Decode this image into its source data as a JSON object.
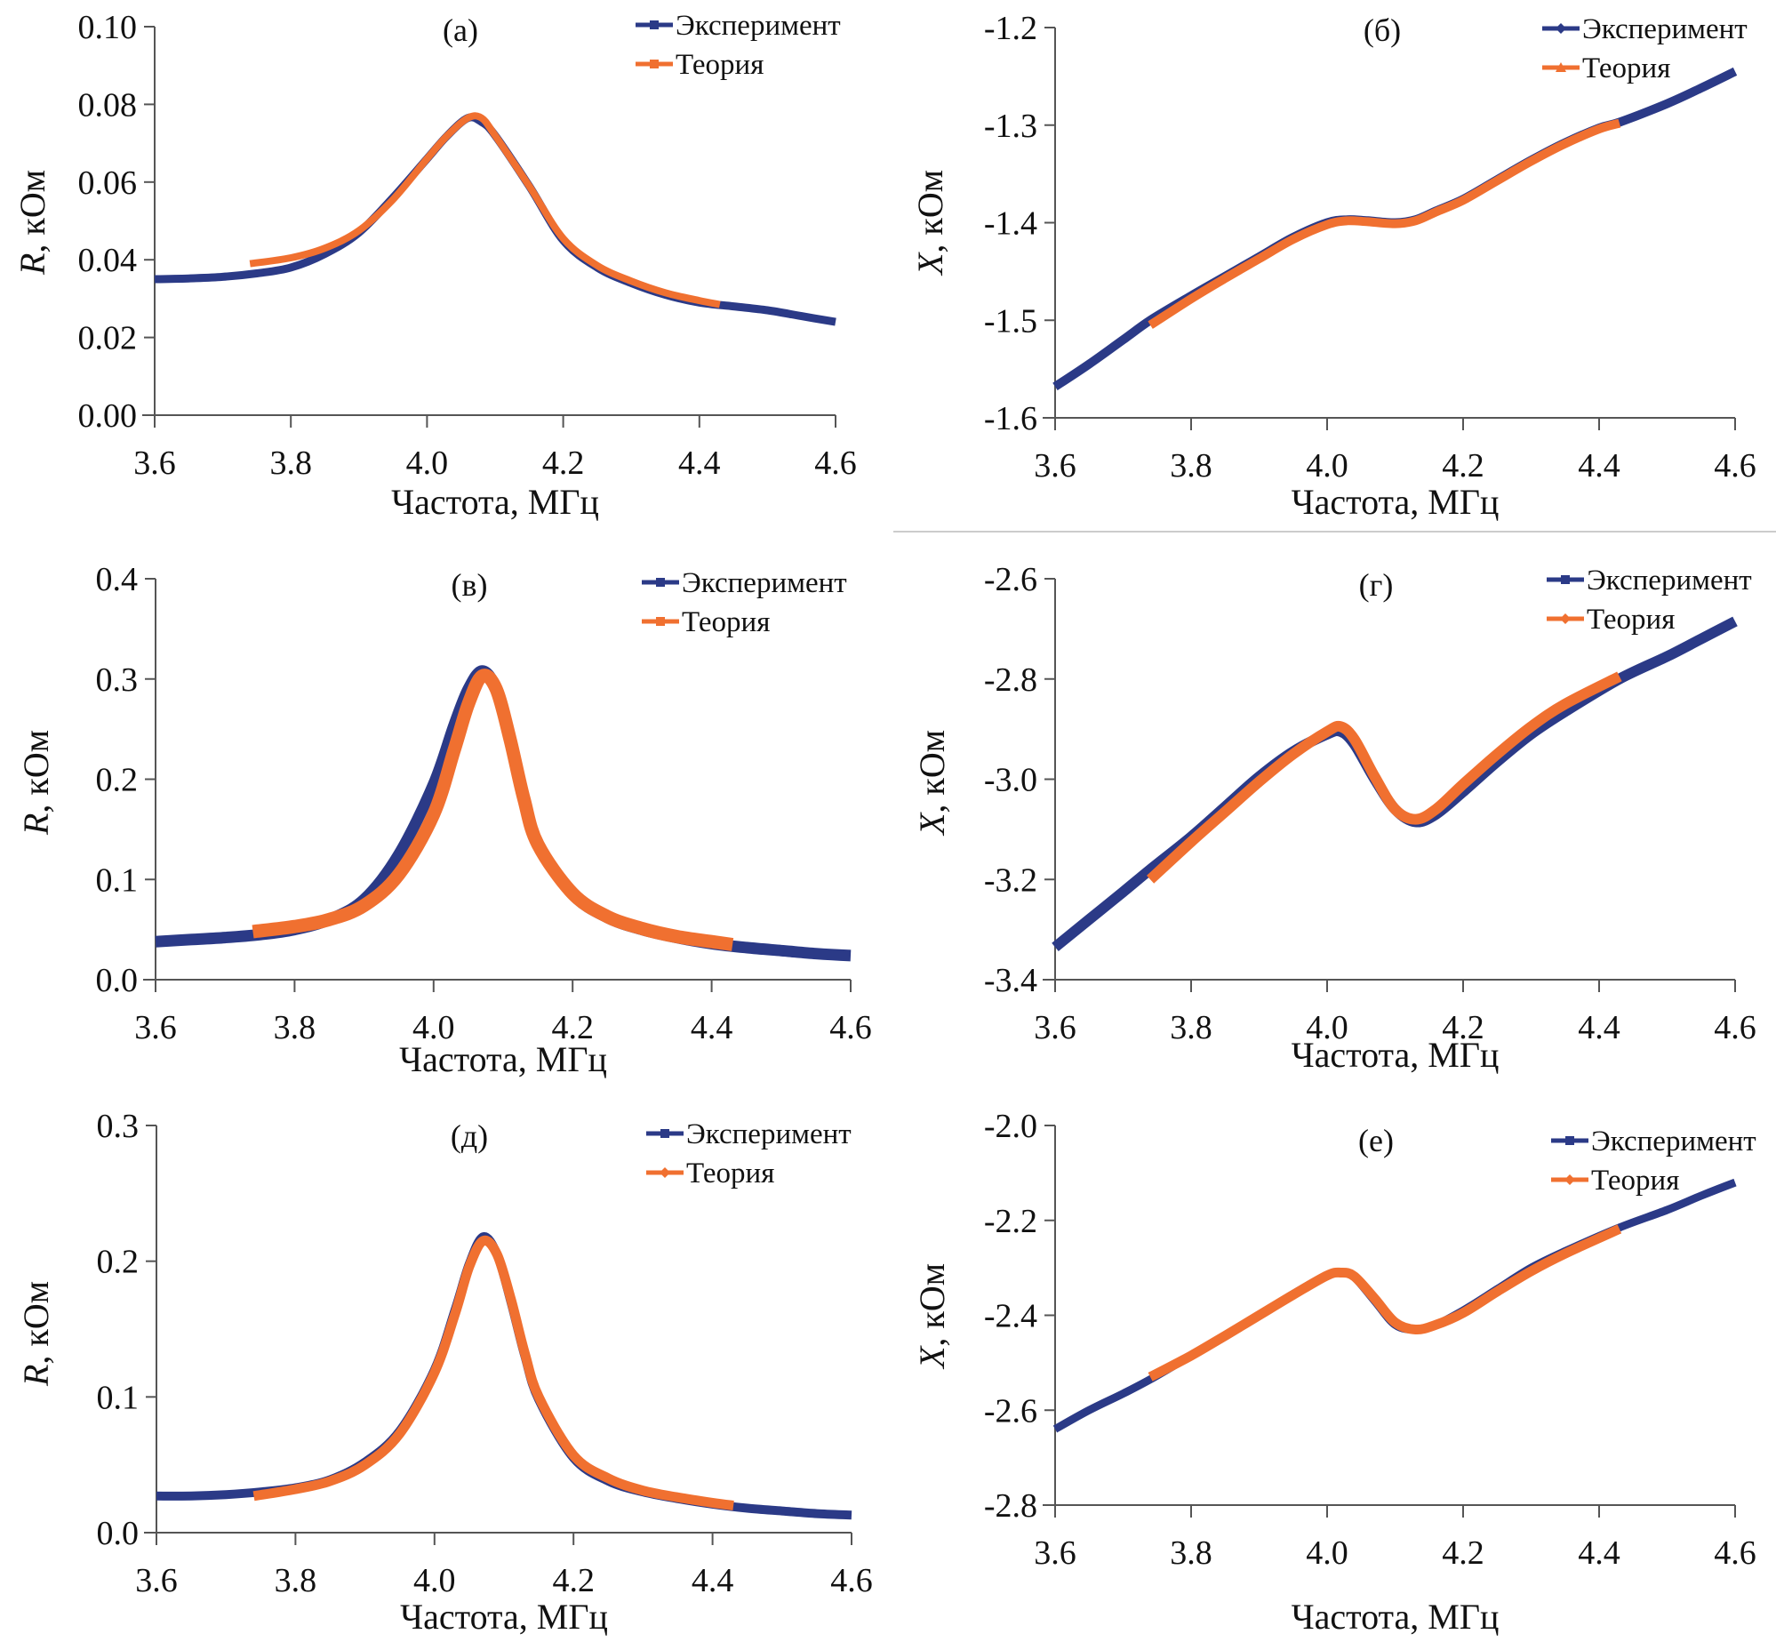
{
  "chart_data": [
    {
      "id": "a",
      "type": "line",
      "panel_label": "(а)",
      "title": "",
      "xlabel": "Частота, МГц",
      "ylabel_italic": "R",
      "ylabel_rest": ", кОм",
      "xlim": [
        3.6,
        4.6
      ],
      "ylim": [
        0.0,
        0.1
      ],
      "xticks": [
        3.6,
        3.8,
        4.0,
        4.2,
        4.4,
        4.6
      ],
      "xtick_labels": [
        "3.6",
        "3.8",
        "4.0",
        "4.2",
        "4.4",
        "4.6"
      ],
      "yticks": [
        0.0,
        0.02,
        0.04,
        0.06,
        0.08,
        0.1
      ],
      "ytick_labels": [
        "0.00",
        "0.02",
        "0.04",
        "0.06",
        "0.08",
        "0.10"
      ],
      "grid": false,
      "legend_position": "top-right",
      "series": [
        {
          "name": "Эксперимент",
          "color": "#2b3a87",
          "marker": "square",
          "x": [
            3.6,
            3.65,
            3.7,
            3.75,
            3.8,
            3.85,
            3.9,
            3.95,
            4.0,
            4.03,
            4.06,
            4.08,
            4.1,
            4.15,
            4.2,
            4.25,
            4.3,
            4.35,
            4.4,
            4.45,
            4.5,
            4.55,
            4.6
          ],
          "y": [
            0.035,
            0.0352,
            0.0356,
            0.0365,
            0.038,
            0.0415,
            0.047,
            0.056,
            0.066,
            0.072,
            0.0765,
            0.0755,
            0.072,
            0.059,
            0.045,
            0.038,
            0.034,
            0.031,
            0.029,
            0.028,
            0.027,
            0.0255,
            0.024
          ]
        },
        {
          "name": "Теория",
          "color": "#f07030",
          "marker": "square",
          "x": [
            3.74,
            3.8,
            3.85,
            3.9,
            3.95,
            4.0,
            4.03,
            4.06,
            4.08,
            4.1,
            4.15,
            4.2,
            4.25,
            4.3,
            4.35,
            4.4,
            4.43
          ],
          "y": [
            0.039,
            0.0405,
            0.043,
            0.0475,
            0.0555,
            0.066,
            0.072,
            0.0765,
            0.0765,
            0.072,
            0.059,
            0.0455,
            0.0385,
            0.0345,
            0.0315,
            0.0295,
            0.0285
          ]
        }
      ]
    },
    {
      "id": "b",
      "type": "line",
      "panel_label": "(б)",
      "title": "",
      "xlabel": "Частота, МГц",
      "ylabel_italic": "X",
      "ylabel_rest": ", кОм",
      "xlim": [
        3.6,
        4.6
      ],
      "ylim": [
        -1.6,
        -1.2
      ],
      "xticks": [
        3.6,
        3.8,
        4.0,
        4.2,
        4.4,
        4.6
      ],
      "xtick_labels": [
        "3.6",
        "3.8",
        "4.0",
        "4.2",
        "4.4",
        "4.6"
      ],
      "yticks": [
        -1.6,
        -1.5,
        -1.4,
        -1.3,
        -1.2
      ],
      "ytick_labels": [
        "-1.6",
        "-1.5",
        "-1.4",
        "-1.3",
        "-1.2"
      ],
      "grid": false,
      "legend_position": "top-right",
      "series": [
        {
          "name": "Эксперимент",
          "color": "#2b3a87",
          "marker": "diamond",
          "x": [
            3.6,
            3.65,
            3.7,
            3.74,
            3.8,
            3.85,
            3.9,
            3.95,
            4.0,
            4.03,
            4.06,
            4.1,
            4.13,
            4.16,
            4.2,
            4.25,
            4.3,
            4.35,
            4.4,
            4.43,
            4.5,
            4.55,
            4.6
          ],
          "y": [
            -1.568,
            -1.545,
            -1.52,
            -1.5,
            -1.475,
            -1.455,
            -1.435,
            -1.415,
            -1.4,
            -1.397,
            -1.398,
            -1.4,
            -1.397,
            -1.388,
            -1.376,
            -1.356,
            -1.336,
            -1.318,
            -1.303,
            -1.297,
            -1.278,
            -1.262,
            -1.245
          ]
        },
        {
          "name": "Теория",
          "color": "#f07030",
          "marker": "triangle",
          "x": [
            3.74,
            3.8,
            3.85,
            3.9,
            3.95,
            4.0,
            4.03,
            4.06,
            4.1,
            4.13,
            4.16,
            4.2,
            4.25,
            4.3,
            4.35,
            4.4,
            4.43
          ],
          "y": [
            -1.505,
            -1.478,
            -1.457,
            -1.437,
            -1.417,
            -1.402,
            -1.398,
            -1.399,
            -1.401,
            -1.398,
            -1.389,
            -1.377,
            -1.357,
            -1.337,
            -1.319,
            -1.304,
            -1.298
          ]
        }
      ]
    },
    {
      "id": "c",
      "type": "line",
      "panel_label": "(в)",
      "title": "",
      "xlabel": "Частота, МГц",
      "ylabel_italic": "R",
      "ylabel_rest": ", кОм",
      "xlim": [
        3.6,
        4.6
      ],
      "ylim": [
        0.0,
        0.4
      ],
      "xticks": [
        3.6,
        3.8,
        4.0,
        4.2,
        4.4,
        4.6
      ],
      "xtick_labels": [
        "3.6",
        "3.8",
        "4.0",
        "4.2",
        "4.4",
        "4.6"
      ],
      "yticks": [
        0.0,
        0.1,
        0.2,
        0.3,
        0.4
      ],
      "ytick_labels": [
        "0.0",
        "0.1",
        "0.2",
        "0.3",
        "0.4"
      ],
      "grid": false,
      "legend_position": "top-right",
      "series": [
        {
          "name": "Эксперимент",
          "color": "#2b3a87",
          "marker": "square",
          "x": [
            3.6,
            3.65,
            3.7,
            3.75,
            3.8,
            3.85,
            3.9,
            3.95,
            4.0,
            4.03,
            4.05,
            4.07,
            4.09,
            4.11,
            4.13,
            4.15,
            4.2,
            4.25,
            4.3,
            4.35,
            4.4,
            4.45,
            4.5,
            4.55,
            4.6
          ],
          "y": [
            0.038,
            0.04,
            0.042,
            0.045,
            0.05,
            0.06,
            0.08,
            0.125,
            0.195,
            0.255,
            0.29,
            0.308,
            0.29,
            0.24,
            0.18,
            0.135,
            0.085,
            0.062,
            0.05,
            0.042,
            0.036,
            0.032,
            0.029,
            0.026,
            0.024
          ]
        },
        {
          "name": "Теория",
          "color": "#f07030",
          "marker": "square",
          "x": [
            3.74,
            3.8,
            3.85,
            3.9,
            3.95,
            4.0,
            4.03,
            4.05,
            4.07,
            4.09,
            4.11,
            4.13,
            4.15,
            4.2,
            4.25,
            4.3,
            4.35,
            4.4,
            4.43
          ],
          "y": [
            0.048,
            0.053,
            0.06,
            0.074,
            0.105,
            0.165,
            0.23,
            0.275,
            0.303,
            0.29,
            0.24,
            0.18,
            0.135,
            0.086,
            0.063,
            0.051,
            0.043,
            0.038,
            0.035
          ]
        }
      ]
    },
    {
      "id": "d",
      "type": "line",
      "panel_label": "(г)",
      "title": "",
      "xlabel": "Частота, МГц",
      "ylabel_italic": "X",
      "ylabel_rest": ", кОм",
      "xlim": [
        3.6,
        4.6
      ],
      "ylim": [
        -3.4,
        -2.6
      ],
      "xticks": [
        3.6,
        3.8,
        4.0,
        4.2,
        4.4,
        4.6
      ],
      "xtick_labels": [
        "3.6",
        "3.8",
        "4.0",
        "4.2",
        "4.4",
        "4.6"
      ],
      "yticks": [
        -3.4,
        -3.2,
        -3.0,
        -2.8,
        -2.6
      ],
      "ytick_labels": [
        "-3.4",
        "-3.2",
        "-3.0",
        "-2.8",
        "-2.6"
      ],
      "grid": false,
      "legend_position": "top-right",
      "series": [
        {
          "name": "Эксперимент",
          "color": "#2b3a87",
          "marker": "square",
          "x": [
            3.6,
            3.65,
            3.7,
            3.74,
            3.8,
            3.85,
            3.9,
            3.95,
            4.0,
            4.02,
            4.04,
            4.07,
            4.1,
            4.13,
            4.16,
            4.2,
            4.25,
            4.3,
            4.35,
            4.43,
            4.5,
            4.55,
            4.6
          ],
          "y": [
            -3.335,
            -3.28,
            -3.225,
            -3.18,
            -3.115,
            -3.055,
            -2.995,
            -2.945,
            -2.91,
            -2.905,
            -2.93,
            -3.0,
            -3.06,
            -3.085,
            -3.07,
            -3.025,
            -2.965,
            -2.91,
            -2.865,
            -2.8,
            -2.755,
            -2.72,
            -2.685
          ]
        },
        {
          "name": "Теория",
          "color": "#f07030",
          "marker": "diamond",
          "x": [
            3.74,
            3.8,
            3.85,
            3.9,
            3.95,
            4.0,
            4.02,
            4.04,
            4.07,
            4.1,
            4.13,
            4.16,
            4.2,
            4.25,
            4.3,
            4.35,
            4.43
          ],
          "y": [
            -3.2,
            -3.125,
            -3.065,
            -3.005,
            -2.95,
            -2.905,
            -2.895,
            -2.92,
            -2.995,
            -3.06,
            -3.08,
            -3.06,
            -3.01,
            -2.95,
            -2.895,
            -2.85,
            -2.795
          ]
        }
      ]
    },
    {
      "id": "e",
      "type": "line",
      "panel_label": "(д)",
      "title": "",
      "xlabel": "Частота, МГц",
      "ylabel_italic": "R",
      "ylabel_rest": ", кОм",
      "xlim": [
        3.6,
        4.6
      ],
      "ylim": [
        0.0,
        0.3
      ],
      "xticks": [
        3.6,
        3.8,
        4.0,
        4.2,
        4.4,
        4.6
      ],
      "xtick_labels": [
        "3.6",
        "3.8",
        "4.0",
        "4.2",
        "4.4",
        "4.6"
      ],
      "yticks": [
        0.0,
        0.1,
        0.2,
        0.3
      ],
      "ytick_labels": [
        "0.0",
        "0.1",
        "0.2",
        "0.3"
      ],
      "grid": false,
      "legend_position": "top-right",
      "series": [
        {
          "name": "Эксперимент",
          "color": "#2b3a87",
          "marker": "square",
          "x": [
            3.6,
            3.65,
            3.7,
            3.75,
            3.8,
            3.85,
            3.9,
            3.95,
            4.0,
            4.03,
            4.05,
            4.07,
            4.09,
            4.11,
            4.13,
            4.15,
            4.2,
            4.25,
            4.3,
            4.35,
            4.4,
            4.45,
            4.5,
            4.55,
            4.6
          ],
          "y": [
            0.027,
            0.027,
            0.028,
            0.03,
            0.033,
            0.039,
            0.052,
            0.075,
            0.12,
            0.165,
            0.198,
            0.218,
            0.205,
            0.17,
            0.13,
            0.098,
            0.055,
            0.038,
            0.03,
            0.025,
            0.021,
            0.018,
            0.016,
            0.014,
            0.013
          ]
        },
        {
          "name": "Теория",
          "color": "#f07030",
          "marker": "diamond",
          "x": [
            3.74,
            3.8,
            3.85,
            3.9,
            3.95,
            4.0,
            4.03,
            4.05,
            4.07,
            4.09,
            4.11,
            4.13,
            4.15,
            4.2,
            4.25,
            4.3,
            4.35,
            4.4,
            4.43
          ],
          "y": [
            0.027,
            0.032,
            0.038,
            0.05,
            0.073,
            0.118,
            0.162,
            0.196,
            0.215,
            0.205,
            0.172,
            0.132,
            0.1,
            0.057,
            0.04,
            0.031,
            0.026,
            0.022,
            0.02
          ]
        }
      ]
    },
    {
      "id": "f",
      "type": "line",
      "panel_label": "(е)",
      "title": "",
      "xlabel": "Частота, МГц",
      "ylabel_italic": "X",
      "ylabel_rest": ", кОм",
      "xlim": [
        3.6,
        4.6
      ],
      "ylim": [
        -2.8,
        -2.0
      ],
      "xticks": [
        3.6,
        3.8,
        4.0,
        4.2,
        4.4,
        4.6
      ],
      "xtick_labels": [
        "3.6",
        "3.8",
        "4.0",
        "4.2",
        "4.4",
        "4.6"
      ],
      "yticks": [
        -2.8,
        -2.6,
        -2.4,
        -2.2,
        -2.0
      ],
      "ytick_labels": [
        "-2.8",
        "-2.6",
        "-2.4",
        "-2.2",
        "-2.0"
      ],
      "grid": false,
      "legend_position": "top-right",
      "series": [
        {
          "name": "Эксперимент",
          "color": "#2b3a87",
          "marker": "square",
          "x": [
            3.6,
            3.65,
            3.7,
            3.74,
            3.8,
            3.85,
            3.9,
            3.95,
            4.0,
            4.02,
            4.04,
            4.07,
            4.1,
            4.13,
            4.16,
            4.2,
            4.25,
            4.3,
            4.35,
            4.43,
            4.5,
            4.55,
            4.6
          ],
          "y": [
            -2.64,
            -2.6,
            -2.565,
            -2.535,
            -2.485,
            -2.445,
            -2.4,
            -2.355,
            -2.315,
            -2.31,
            -2.32,
            -2.37,
            -2.42,
            -2.43,
            -2.42,
            -2.39,
            -2.345,
            -2.3,
            -2.265,
            -2.215,
            -2.178,
            -2.148,
            -2.12
          ]
        },
        {
          "name": "Теория",
          "color": "#f07030",
          "marker": "diamond",
          "x": [
            3.74,
            3.8,
            3.85,
            3.9,
            3.95,
            4.0,
            4.02,
            4.04,
            4.07,
            4.1,
            4.13,
            4.16,
            4.2,
            4.25,
            4.3,
            4.35,
            4.43
          ],
          "y": [
            -2.53,
            -2.485,
            -2.443,
            -2.4,
            -2.357,
            -2.316,
            -2.31,
            -2.318,
            -2.365,
            -2.415,
            -2.43,
            -2.42,
            -2.395,
            -2.35,
            -2.307,
            -2.27,
            -2.218
          ]
        }
      ]
    }
  ]
}
